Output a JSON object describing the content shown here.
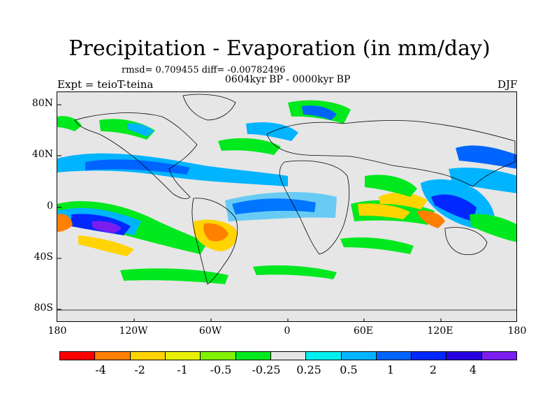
{
  "title": "Precipitation - Evaporation (in mm/day)",
  "stats": "rmsd= 0.709455 diff= -0.00782496",
  "period": "0604kyr BP - 0000kyr BP",
  "experiment": "Expt = teioT-teina",
  "season": "DJF",
  "lat_labels": [
    "80N",
    "40N",
    "0",
    "40S",
    "80S"
  ],
  "lon_labels": [
    "180",
    "120W",
    "60W",
    "0",
    "60E",
    "120E",
    "180"
  ],
  "colorbar": {
    "colors": [
      "#ff0000",
      "#ff8000",
      "#ffd400",
      "#e6f000",
      "#80f000",
      "#00e81e",
      "#e6e6e6",
      "#00f0f0",
      "#00b4ff",
      "#0064ff",
      "#0028ff",
      "#2800e0",
      "#7a1ef0"
    ],
    "labels": [
      "-4",
      "-2",
      "-1",
      "-0.5",
      "-0.25",
      "0.25",
      "0.5",
      "1",
      "2",
      "4"
    ]
  }
}
